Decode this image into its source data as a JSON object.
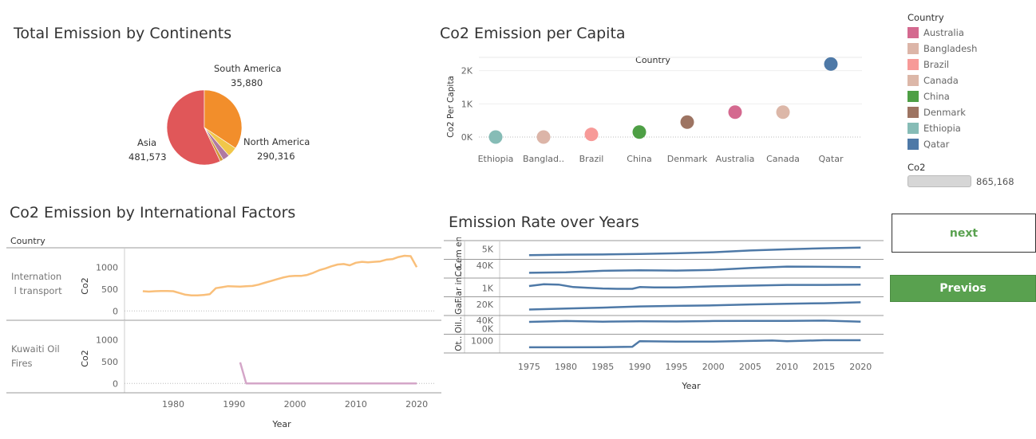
{
  "titles": {
    "pie": "Total Emission by Continents",
    "scatter": "Co2 Emission per Capita",
    "intl": "Co2 Emission by International Factors",
    "years": "Emission Rate over Years"
  },
  "pie_labels": {
    "south_america_name": "South America",
    "south_america_value": "35,880",
    "asia_name": "Asia",
    "asia_value": "481,573",
    "north_america_name": "North America",
    "north_america_value": "290,316"
  },
  "legend": {
    "title": "Country",
    "items": [
      {
        "label": "Australia",
        "color": "#d4698f"
      },
      {
        "label": "Bangladesh",
        "color": "#dcb5a8"
      },
      {
        "label": "Brazil",
        "color": "#f79a98"
      },
      {
        "label": "Canada",
        "color": "#dcb7a8"
      },
      {
        "label": "China",
        "color": "#4e9f45"
      },
      {
        "label": "Denmark",
        "color": "#9d7462"
      },
      {
        "label": "Ethiopia",
        "color": "#86bcb6"
      },
      {
        "label": "Qatar",
        "color": "#4e79a7"
      }
    ],
    "size_title": "Co2",
    "size_value": "865,168"
  },
  "buttons": {
    "next": "next",
    "prev": "Previos"
  },
  "chart_data": [
    {
      "type": "pie",
      "title": "Total Emission by Continents",
      "slices": [
        {
          "label": "Asia",
          "value": 481573,
          "color": "#e05759"
        },
        {
          "label": "North America",
          "value": 290316,
          "color": "#f28e2b"
        },
        {
          "label": "South America",
          "value": 35880,
          "color": "#f1c74a"
        },
        {
          "label": "",
          "value": 25000,
          "color": "#b07aa1"
        },
        {
          "label": "",
          "value": 12000,
          "color": "#d29a3a"
        }
      ]
    },
    {
      "type": "scatter",
      "title": "Co2 Emission per Capita",
      "xlabel": "Country",
      "ylabel": "Co2 Per Capita",
      "categories": [
        "Ethiopia",
        "Banglad..",
        "Brazil",
        "China",
        "Denmark",
        "Australia",
        "Canada",
        "Qatar"
      ],
      "values": [
        0,
        0,
        80,
        150,
        450,
        750,
        750,
        2200
      ],
      "colors": [
        "#86bcb6",
        "#dcb5a8",
        "#f79a98",
        "#4e9f45",
        "#9d7462",
        "#d4698f",
        "#dcb7a8",
        "#4e79a7"
      ],
      "yticks": [
        "0K",
        "1K",
        "2K"
      ],
      "ylim": [
        0,
        2400
      ]
    },
    {
      "type": "line",
      "title": "Co2 Emission by International Factors",
      "row_header": "Country",
      "xlabel": "Year",
      "ylabel": "Co2",
      "xticks": [
        1980,
        1990,
        2000,
        2010,
        2020
      ],
      "xlim": [
        1972,
        2023
      ],
      "panels": [
        {
          "name": "Internationa l transport",
          "color": "#f9bf7a",
          "yticks": [
            0,
            500,
            1000
          ],
          "ylim": [
            -50,
            1350
          ],
          "x": [
            1975,
            1976,
            1977,
            1978,
            1979,
            1980,
            1981,
            1982,
            1983,
            1984,
            1985,
            1986,
            1987,
            1988,
            1989,
            1990,
            1991,
            1992,
            1993,
            1994,
            1995,
            1996,
            1997,
            1998,
            1999,
            2000,
            2001,
            2002,
            2003,
            2004,
            2005,
            2006,
            2007,
            2008,
            2009,
            2010,
            2011,
            2012,
            2013,
            2014,
            2015,
            2016,
            2017,
            2018,
            2019,
            2020
          ],
          "y": [
            450,
            440,
            450,
            455,
            455,
            450,
            410,
            370,
            355,
            355,
            365,
            380,
            520,
            540,
            565,
            560,
            555,
            565,
            570,
            600,
            640,
            680,
            720,
            760,
            790,
            800,
            800,
            820,
            870,
            930,
            970,
            1020,
            1060,
            1070,
            1040,
            1100,
            1120,
            1110,
            1120,
            1130,
            1170,
            1180,
            1230,
            1260,
            1250,
            1000
          ]
        },
        {
          "name": "Kuwaiti Oil Fires",
          "color": "#d4a6c8",
          "yticks": [
            0,
            500,
            1000
          ],
          "ylim": [
            -50,
            1350
          ],
          "x": [
            1991,
            1992,
            2020
          ],
          "y": [
            480,
            0,
            0
          ]
        }
      ]
    },
    {
      "type": "line",
      "title": "Emission Rate over Years",
      "xlabel": "Year",
      "xticks": [
        1975,
        1980,
        1985,
        1990,
        1995,
        2000,
        2005,
        2010,
        2015,
        2020
      ],
      "xlim": [
        1971,
        2023
      ],
      "color": "#4e79a7",
      "panels": [
        {
          "name": "Cem en..",
          "yticks": [
            "5K"
          ],
          "ytick_values": [
            5000
          ],
          "ylim": [
            0,
            9000
          ],
          "x": [
            1975,
            1980,
            1985,
            1990,
            1995,
            2000,
            2005,
            2010,
            2015,
            2020
          ],
          "y": [
            1500,
            1800,
            1900,
            2200,
            2600,
            3200,
            4200,
            4900,
            5500,
            5900
          ]
        },
        {
          "name": "Co..",
          "yticks": [
            "40K"
          ],
          "ytick_values": [
            40000
          ],
          "ylim": [
            0,
            55000
          ],
          "x": [
            1975,
            1980,
            1985,
            1990,
            1995,
            2000,
            2005,
            2010,
            2015,
            2020
          ],
          "y": [
            13000,
            15000,
            20000,
            22000,
            21000,
            23000,
            30000,
            35000,
            34000,
            33000
          ]
        },
        {
          "name": "Flar in..",
          "yticks": [
            "1K"
          ],
          "ytick_values": [
            1000
          ],
          "ylim": [
            0,
            2200
          ],
          "x": [
            1975,
            1977,
            1979,
            1981,
            1983,
            1985,
            1987,
            1989,
            1990,
            1992,
            1995,
            2000,
            2005,
            2010,
            2015,
            2020
          ],
          "y": [
            1300,
            1550,
            1500,
            1150,
            1050,
            950,
            900,
            900,
            1150,
            1100,
            1100,
            1250,
            1350,
            1450,
            1450,
            1500
          ]
        },
        {
          "name": "Ga..",
          "yticks": [
            "20K"
          ],
          "ytick_values": [
            20000
          ],
          "ylim": [
            0,
            32000
          ],
          "x": [
            1975,
            1980,
            1985,
            1990,
            1995,
            2000,
            2005,
            2010,
            2015,
            2020
          ],
          "y": [
            9000,
            11000,
            13000,
            15500,
            16500,
            17500,
            19500,
            21000,
            22000,
            24000
          ]
        },
        {
          "name": "Oil..",
          "yticks": [
            "40K",
            "0K"
          ],
          "ytick_values": [
            40000,
            0
          ],
          "ylim": [
            -20000,
            55000
          ],
          "x": [
            1975,
            1980,
            1985,
            1990,
            1995,
            2000,
            2005,
            2010,
            2015,
            2020
          ],
          "y": [
            32000,
            36000,
            33000,
            35000,
            34000,
            36000,
            37000,
            37000,
            38000,
            33000
          ]
        },
        {
          "name": "Ot..",
          "yticks": [
            "1000"
          ],
          "ytick_values": [
            1000
          ],
          "ylim": [
            -600,
            1700
          ],
          "x": [
            1975,
            1980,
            1985,
            1989,
            1990,
            1995,
            2000,
            2005,
            2008,
            2010,
            2015,
            2020
          ],
          "y": [
            0,
            0,
            20,
            80,
            900,
            850,
            850,
            950,
            1000,
            900,
            1050,
            1050
          ]
        }
      ]
    }
  ]
}
